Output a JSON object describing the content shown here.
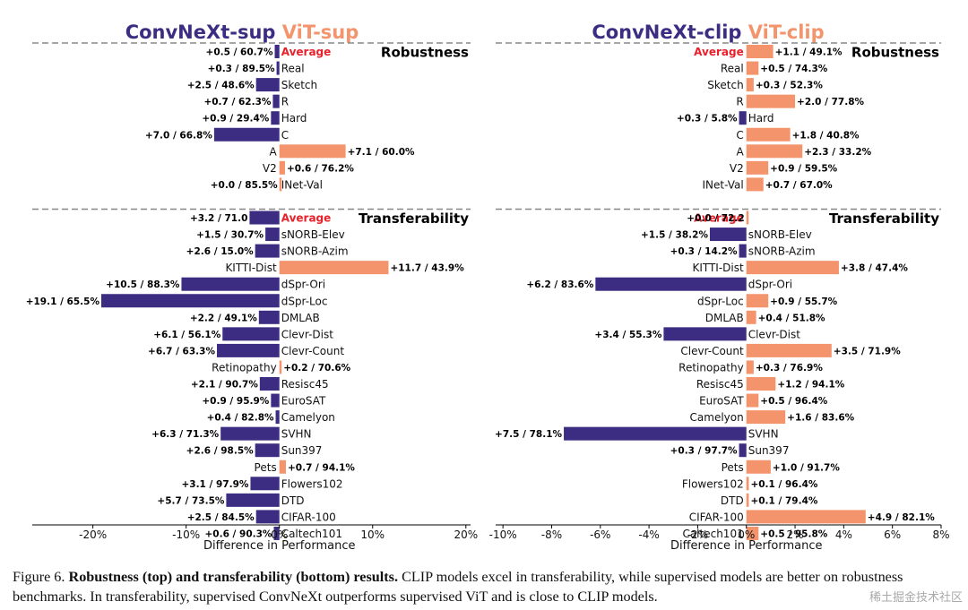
{
  "colors": {
    "convnext": "#3c2d82",
    "vit": "#f3946c",
    "average": "#e8202a",
    "grid": "#888888"
  },
  "caption": {
    "figure_label": "Figure 6.",
    "bold_text": "Robustness (top) and transferability (bottom) results.",
    "rest_text": "CLIP models excel in transferability, while supervised models are better on robustness benchmarks. In transferability, supervised ConvNeXt outperforms supervised ViT and is close to CLIP models."
  },
  "watermark": "稀土掘金技术社区",
  "chart_data": [
    {
      "type": "bar",
      "orientation": "horizontal",
      "name": "supervised",
      "title_left": "ConvNeXt-sup",
      "title_right": "ViT-sup",
      "xlabel": "Difference in Performance",
      "xlim": [
        -26.5,
        20.5
      ],
      "xticks": [
        -20,
        -10,
        0,
        10,
        20
      ],
      "xtick_labels": [
        "-20%",
        "-10%",
        "0%",
        "10%",
        "20%"
      ],
      "sections": [
        {
          "title": "Robustness",
          "rows": [
            {
              "label": "Average",
              "diff": -0.5,
              "text": "+0.5 / 60.7%",
              "is_average": true
            },
            {
              "label": "Real",
              "diff": -0.3,
              "text": "+0.3 / 89.5%"
            },
            {
              "label": "Sketch",
              "diff": -2.5,
              "text": "+2.5 / 48.6%"
            },
            {
              "label": "R",
              "diff": -0.7,
              "text": "+0.7 / 62.3%"
            },
            {
              "label": "Hard",
              "diff": -0.9,
              "text": "+0.9 / 29.4%"
            },
            {
              "label": "C",
              "diff": -7.0,
              "text": "+7.0 / 66.8%"
            },
            {
              "label": "A",
              "diff": 7.1,
              "text": "+7.1 / 60.0%"
            },
            {
              "label": "V2",
              "diff": 0.6,
              "text": "+0.6 / 76.2%"
            },
            {
              "label": "INet-Val",
              "diff": 0.0,
              "text": "+0.0 / 85.5%"
            }
          ]
        },
        {
          "title": "Transferability",
          "rows": [
            {
              "label": "Average",
              "diff": -3.2,
              "text": "+3.2 / 71.0",
              "is_average": true
            },
            {
              "label": "sNORB-Elev",
              "diff": -1.5,
              "text": "+1.5 / 30.7%"
            },
            {
              "label": "sNORB-Azim",
              "diff": -2.6,
              "text": "+2.6 / 15.0%"
            },
            {
              "label": "KITTI-Dist",
              "diff": 11.7,
              "text": "+11.7 / 43.9%"
            },
            {
              "label": "dSpr-Ori",
              "diff": -10.5,
              "text": "+10.5 / 88.3%"
            },
            {
              "label": "dSpr-Loc",
              "diff": -19.1,
              "text": "+19.1 / 65.5%"
            },
            {
              "label": "DMLAB",
              "diff": -2.2,
              "text": "+2.2 / 49.1%"
            },
            {
              "label": "Clevr-Dist",
              "diff": -6.1,
              "text": "+6.1 / 56.1%"
            },
            {
              "label": "Clevr-Count",
              "diff": -6.7,
              "text": "+6.7 / 63.3%"
            },
            {
              "label": "Retinopathy",
              "diff": 0.2,
              "text": "+0.2 / 70.6%"
            },
            {
              "label": "Resisc45",
              "diff": -2.1,
              "text": "+2.1 / 90.7%"
            },
            {
              "label": "EuroSAT",
              "diff": -0.9,
              "text": "+0.9 / 95.9%"
            },
            {
              "label": "Camelyon",
              "diff": -0.4,
              "text": "+0.4 / 82.8%"
            },
            {
              "label": "SVHN",
              "diff": -6.3,
              "text": "+6.3 / 71.3%"
            },
            {
              "label": "Sun397",
              "diff": -2.6,
              "text": "+2.6 / 98.5%"
            },
            {
              "label": "Pets",
              "diff": 0.7,
              "text": "+0.7 / 94.1%"
            },
            {
              "label": "Flowers102",
              "diff": -3.1,
              "text": "+3.1 / 97.9%"
            },
            {
              "label": "DTD",
              "diff": -5.7,
              "text": "+5.7 / 73.5%"
            },
            {
              "label": "CIFAR-100",
              "diff": -2.5,
              "text": "+2.5 / 84.5%"
            },
            {
              "label": "Caltech101",
              "diff": -0.6,
              "text": "+0.6 / 90.3%"
            }
          ]
        }
      ]
    },
    {
      "type": "bar",
      "orientation": "horizontal",
      "name": "clip",
      "title_left": "ConvNeXt-clip",
      "title_right": "ViT-clip",
      "xlabel": "Difference in Performance",
      "xlim": [
        -10.3,
        8.0
      ],
      "xticks": [
        -10,
        -8,
        -6,
        -4,
        -2,
        0,
        2,
        4,
        6,
        8
      ],
      "xtick_labels": [
        "-10%",
        "-8%",
        "-6%",
        "-4%",
        "-2%",
        "0%",
        "2%",
        "4%",
        "6%",
        "8%"
      ],
      "sections": [
        {
          "title": "Robustness",
          "rows": [
            {
              "label": "Average",
              "diff": 1.1,
              "text": "+1.1 / 49.1%",
              "is_average": true
            },
            {
              "label": "Real",
              "diff": 0.5,
              "text": "+0.5 / 74.3%"
            },
            {
              "label": "Sketch",
              "diff": 0.3,
              "text": "+0.3 / 52.3%"
            },
            {
              "label": "R",
              "diff": 2.0,
              "text": "+2.0 / 77.8%"
            },
            {
              "label": "Hard",
              "diff": -0.3,
              "text": "+0.3 / 5.8%"
            },
            {
              "label": "C",
              "diff": 1.8,
              "text": "+1.8 / 40.8%"
            },
            {
              "label": "A",
              "diff": 2.3,
              "text": "+2.3 / 33.2%"
            },
            {
              "label": "V2",
              "diff": 0.9,
              "text": "+0.9 / 59.5%"
            },
            {
              "label": "INet-Val",
              "diff": 0.7,
              "text": "+0.7 / 67.0%"
            }
          ]
        },
        {
          "title": "Transferability",
          "rows": [
            {
              "label": "Average",
              "diff": 0.0,
              "text": "+0.0 / 72.2",
              "is_average": true
            },
            {
              "label": "sNORB-Elev",
              "diff": -1.5,
              "text": "+1.5 / 38.2%"
            },
            {
              "label": "sNORB-Azim",
              "diff": -0.3,
              "text": "+0.3 / 14.2%"
            },
            {
              "label": "KITTI-Dist",
              "diff": 3.8,
              "text": "+3.8 / 47.4%"
            },
            {
              "label": "dSpr-Ori",
              "diff": -6.2,
              "text": "+6.2 / 83.6%"
            },
            {
              "label": "dSpr-Loc",
              "diff": 0.9,
              "text": "+0.9 / 55.7%"
            },
            {
              "label": "DMLAB",
              "diff": 0.4,
              "text": "+0.4 / 51.8%"
            },
            {
              "label": "Clevr-Dist",
              "diff": -3.4,
              "text": "+3.4 / 55.3%"
            },
            {
              "label": "Clevr-Count",
              "diff": 3.5,
              "text": "+3.5 / 71.9%"
            },
            {
              "label": "Retinopathy",
              "diff": 0.3,
              "text": "+0.3 / 76.9%"
            },
            {
              "label": "Resisc45",
              "diff": 1.2,
              "text": "+1.2 / 94.1%"
            },
            {
              "label": "EuroSAT",
              "diff": 0.5,
              "text": "+0.5 / 96.4%"
            },
            {
              "label": "Camelyon",
              "diff": 1.6,
              "text": "+1.6 / 83.6%"
            },
            {
              "label": "SVHN",
              "diff": -7.5,
              "text": "+7.5 / 78.1%"
            },
            {
              "label": "Sun397",
              "diff": -0.3,
              "text": "+0.3 / 97.7%"
            },
            {
              "label": "Pets",
              "diff": 1.0,
              "text": "+1.0 / 91.7%"
            },
            {
              "label": "Flowers102",
              "diff": 0.1,
              "text": "+0.1 / 96.4%"
            },
            {
              "label": "DTD",
              "diff": 0.1,
              "text": "+0.1 / 79.4%"
            },
            {
              "label": "CIFAR-100",
              "diff": 4.9,
              "text": "+4.9 / 82.1%"
            },
            {
              "label": "Caltech101",
              "diff": 0.5,
              "text": "+0.5 / 95.8%"
            }
          ]
        }
      ]
    }
  ]
}
